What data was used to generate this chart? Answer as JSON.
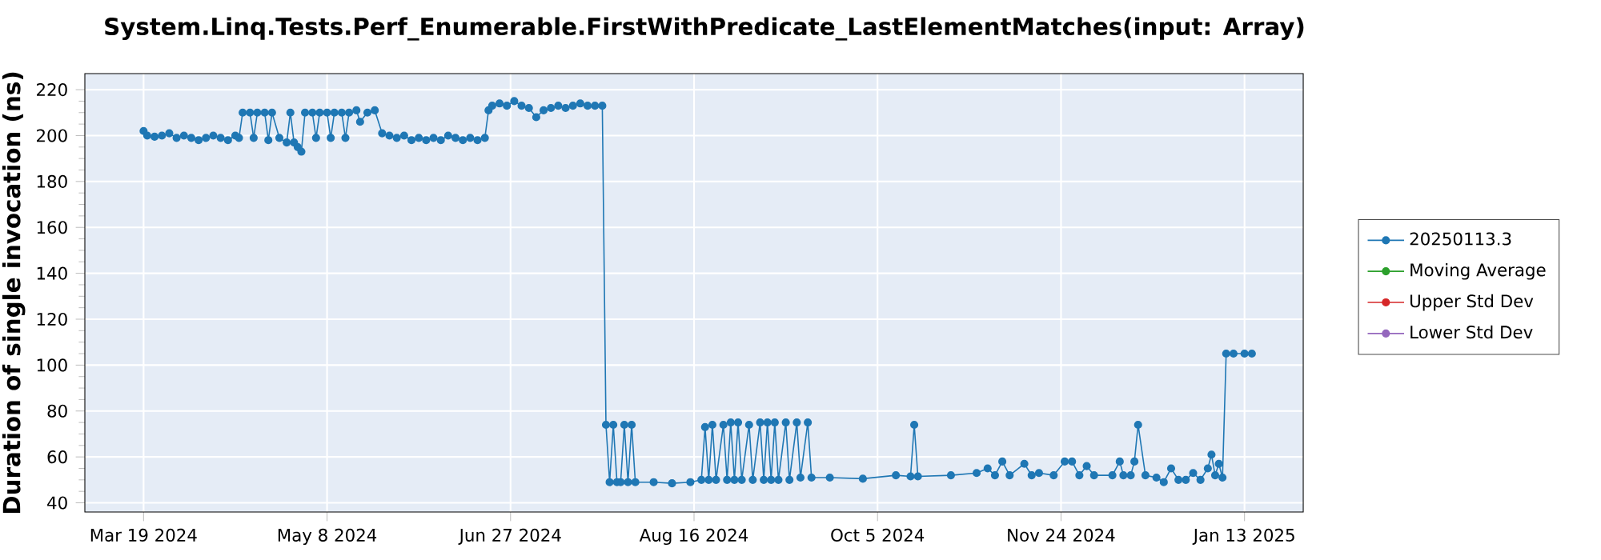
{
  "chart_data": {
    "type": "line",
    "title": "System.Linq.Tests.Perf_Enumerable.FirstWithPredicate_LastElementMatches(input: Array)",
    "ylabel": "Duration of single invocation (ns)",
    "xlim": [
      "2024-03-03",
      "2025-01-29"
    ],
    "xticks": [
      {
        "value": "2024-03-19",
        "label": "Mar 19 2024"
      },
      {
        "value": "2024-05-08",
        "label": "May 8 2024"
      },
      {
        "value": "2024-06-27",
        "label": "Jun 27 2024"
      },
      {
        "value": "2024-08-16",
        "label": "Aug 16 2024"
      },
      {
        "value": "2024-10-05",
        "label": "Oct 5 2024"
      },
      {
        "value": "2024-11-24",
        "label": "Nov 24 2024"
      },
      {
        "value": "2025-01-13",
        "label": "Jan 13 2025"
      }
    ],
    "ylim": [
      36,
      227
    ],
    "yticks": [
      40,
      60,
      80,
      100,
      120,
      140,
      160,
      180,
      200,
      220
    ],
    "grid": true,
    "legend": "right",
    "marker": "circle",
    "line_style": "solid",
    "series": [
      {
        "name": "20250113.3",
        "color": "#1f77b4",
        "x": [
          "2024-03-19",
          "2024-03-20",
          "2024-03-22",
          "2024-03-24",
          "2024-03-26",
          "2024-03-28",
          "2024-03-30",
          "2024-04-01",
          "2024-04-03",
          "2024-04-05",
          "2024-04-07",
          "2024-04-09",
          "2024-04-11",
          "2024-04-13",
          "2024-04-14",
          "2024-04-15",
          "2024-04-17",
          "2024-04-18",
          "2024-04-19",
          "2024-04-21",
          "2024-04-22",
          "2024-04-23",
          "2024-04-25",
          "2024-04-27",
          "2024-04-28",
          "2024-04-29",
          "2024-04-30",
          "2024-05-01",
          "2024-05-02",
          "2024-05-04",
          "2024-05-05",
          "2024-05-06",
          "2024-05-08",
          "2024-05-09",
          "2024-05-10",
          "2024-05-12",
          "2024-05-13",
          "2024-05-14",
          "2024-05-16",
          "2024-05-17",
          "2024-05-19",
          "2024-05-21",
          "2024-05-23",
          "2024-05-25",
          "2024-05-27",
          "2024-05-29",
          "2024-05-31",
          "2024-06-02",
          "2024-06-04",
          "2024-06-06",
          "2024-06-08",
          "2024-06-10",
          "2024-06-12",
          "2024-06-14",
          "2024-06-16",
          "2024-06-18",
          "2024-06-20",
          "2024-06-21",
          "2024-06-22",
          "2024-06-24",
          "2024-06-26",
          "2024-06-28",
          "2024-06-30",
          "2024-07-02",
          "2024-07-04",
          "2024-07-06",
          "2024-07-08",
          "2024-07-10",
          "2024-07-12",
          "2024-07-14",
          "2024-07-16",
          "2024-07-18",
          "2024-07-20",
          "2024-07-22",
          "2024-07-23",
          "2024-07-24",
          "2024-07-25",
          "2024-07-26",
          "2024-07-27",
          "2024-07-28",
          "2024-07-29",
          "2024-07-30",
          "2024-07-31",
          "2024-08-05",
          "2024-08-10",
          "2024-08-15",
          "2024-08-18",
          "2024-08-19",
          "2024-08-20",
          "2024-08-21",
          "2024-08-22",
          "2024-08-24",
          "2024-08-25",
          "2024-08-26",
          "2024-08-27",
          "2024-08-28",
          "2024-08-29",
          "2024-08-31",
          "2024-09-01",
          "2024-09-03",
          "2024-09-04",
          "2024-09-05",
          "2024-09-06",
          "2024-09-07",
          "2024-09-08",
          "2024-09-10",
          "2024-09-11",
          "2024-09-13",
          "2024-09-14",
          "2024-09-16",
          "2024-09-17",
          "2024-09-22",
          "2024-10-01",
          "2024-10-10",
          "2024-10-14",
          "2024-10-15",
          "2024-10-16",
          "2024-10-25",
          "2024-11-01",
          "2024-11-04",
          "2024-11-06",
          "2024-11-08",
          "2024-11-10",
          "2024-11-14",
          "2024-11-16",
          "2024-11-18",
          "2024-11-22",
          "2024-11-25",
          "2024-11-27",
          "2024-11-29",
          "2024-12-01",
          "2024-12-03",
          "2024-12-08",
          "2024-12-10",
          "2024-12-11",
          "2024-12-13",
          "2024-12-14",
          "2024-12-15",
          "2024-12-17",
          "2024-12-20",
          "2024-12-22",
          "2024-12-24",
          "2024-12-26",
          "2024-12-28",
          "2024-12-30",
          "2025-01-01",
          "2025-01-03",
          "2025-01-04",
          "2025-01-05",
          "2025-01-06",
          "2025-01-07",
          "2025-01-08",
          "2025-01-10",
          "2025-01-13",
          "2025-01-15"
        ],
        "values": [
          202,
          200,
          199.5,
          200,
          201,
          199,
          200,
          199,
          198,
          199,
          200,
          199,
          198,
          200,
          199,
          210,
          210,
          199,
          210,
          210,
          198,
          210,
          199,
          197,
          210,
          197,
          195,
          193,
          210,
          210,
          199,
          210,
          210,
          199,
          210,
          210,
          199,
          210,
          211,
          206,
          210,
          211,
          201,
          200,
          199,
          200,
          198,
          199,
          198,
          199,
          198,
          200,
          199,
          198,
          199,
          198,
          199,
          211,
          213,
          214,
          213,
          215,
          213,
          212,
          208,
          211,
          212,
          213,
          212,
          213,
          214,
          213,
          213,
          213,
          74,
          49,
          74,
          49,
          49,
          74,
          49,
          74,
          49,
          49,
          48.5,
          49,
          50,
          73,
          50,
          74,
          50,
          74,
          50,
          75,
          50,
          75,
          50,
          74,
          50,
          75,
          50,
          75,
          50,
          75,
          50,
          75,
          50,
          75,
          51,
          75,
          51,
          51,
          50.5,
          52,
          51.5,
          74,
          51.5,
          52,
          53,
          55,
          52,
          58,
          52,
          57,
          52,
          53,
          52,
          58,
          58,
          52,
          56,
          52,
          52,
          58,
          52,
          52,
          58,
          74,
          52,
          51,
          49,
          55,
          50,
          50,
          53,
          50,
          55,
          61,
          52,
          57,
          51,
          105,
          105,
          105,
          105
        ]
      },
      {
        "name": "Moving Average",
        "color": "#2ca02c"
      },
      {
        "name": "Upper Std Dev",
        "color": "#d62728"
      },
      {
        "name": "Lower Std Dev",
        "color": "#9467bd"
      }
    ]
  }
}
